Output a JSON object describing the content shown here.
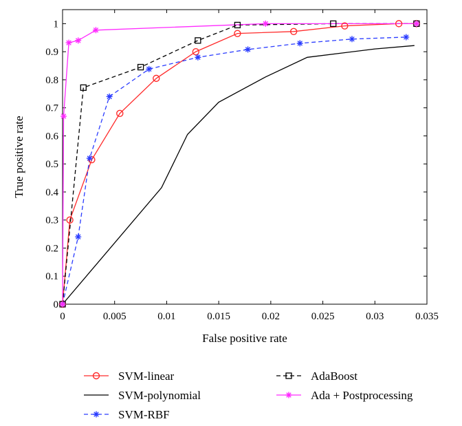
{
  "chart_data": {
    "type": "line",
    "title": "",
    "xlabel": "False positive rate",
    "ylabel": "True positive rate",
    "xlim": [
      0,
      0.035
    ],
    "ylim": [
      0,
      1.05
    ],
    "xticks": [
      0,
      0.005,
      0.01,
      0.015,
      0.02,
      0.025,
      0.03,
      0.035
    ],
    "xtick_labels": [
      "0",
      "0.005",
      "0.01",
      "0.015",
      "0.02",
      "0.025",
      "0.03",
      "0.035"
    ],
    "yticks": [
      0,
      0.1,
      0.2,
      0.3,
      0.4,
      0.5,
      0.6,
      0.7,
      0.8,
      0.9,
      1
    ],
    "ytick_labels": [
      "0",
      "0.1",
      "0.2",
      "0.3",
      "0.4",
      "0.5",
      "0.6",
      "0.7",
      "0.8",
      "0.9",
      "1"
    ],
    "grid": false,
    "legend_position": "below",
    "series": [
      {
        "name": "SVM-linear",
        "color": "#ff2a2a",
        "line_style": "solid",
        "marker": "circle",
        "x": [
          0,
          0.0007,
          0.0028,
          0.0055,
          0.009,
          0.0128,
          0.0168,
          0.0222,
          0.0271,
          0.0323,
          0.034
        ],
        "y": [
          0,
          0.3,
          0.515,
          0.68,
          0.805,
          0.9,
          0.965,
          0.972,
          0.992,
          1.0,
          1.0
        ]
      },
      {
        "name": "SVM-polynomial",
        "color": "#000000",
        "line_style": "solid",
        "marker": "none",
        "x": [
          0,
          0.0095,
          0.012,
          0.015,
          0.0195,
          0.0235,
          0.03,
          0.0338
        ],
        "y": [
          0,
          0.415,
          0.605,
          0.72,
          0.81,
          0.88,
          0.91,
          0.922
        ]
      },
      {
        "name": "SVM-RBF",
        "color": "#2a3cff",
        "line_style": "dashed",
        "marker": "star",
        "x": [
          0,
          0.0015,
          0.0026,
          0.0045,
          0.0083,
          0.013,
          0.0178,
          0.0228,
          0.0278,
          0.033
        ],
        "y": [
          0,
          0.24,
          0.52,
          0.74,
          0.838,
          0.88,
          0.908,
          0.93,
          0.945,
          0.952
        ]
      },
      {
        "name": "AdaBoost",
        "color": "#000000",
        "line_style": "dashed",
        "marker": "square",
        "x": [
          0,
          0.002,
          0.0075,
          0.013,
          0.0168,
          0.026,
          0.034
        ],
        "y": [
          0,
          0.772,
          0.845,
          0.94,
          0.995,
          1.0,
          1.0
        ]
      },
      {
        "name": "Ada + Postprocessing",
        "color": "#ff2aff",
        "line_style": "solid",
        "marker": "star",
        "x": [
          0,
          0.0001,
          0.0006,
          0.0015,
          0.0032,
          0.0195,
          0.034
        ],
        "y": [
          0,
          0.67,
          0.932,
          0.94,
          0.977,
          1.0,
          1.0
        ]
      }
    ]
  }
}
